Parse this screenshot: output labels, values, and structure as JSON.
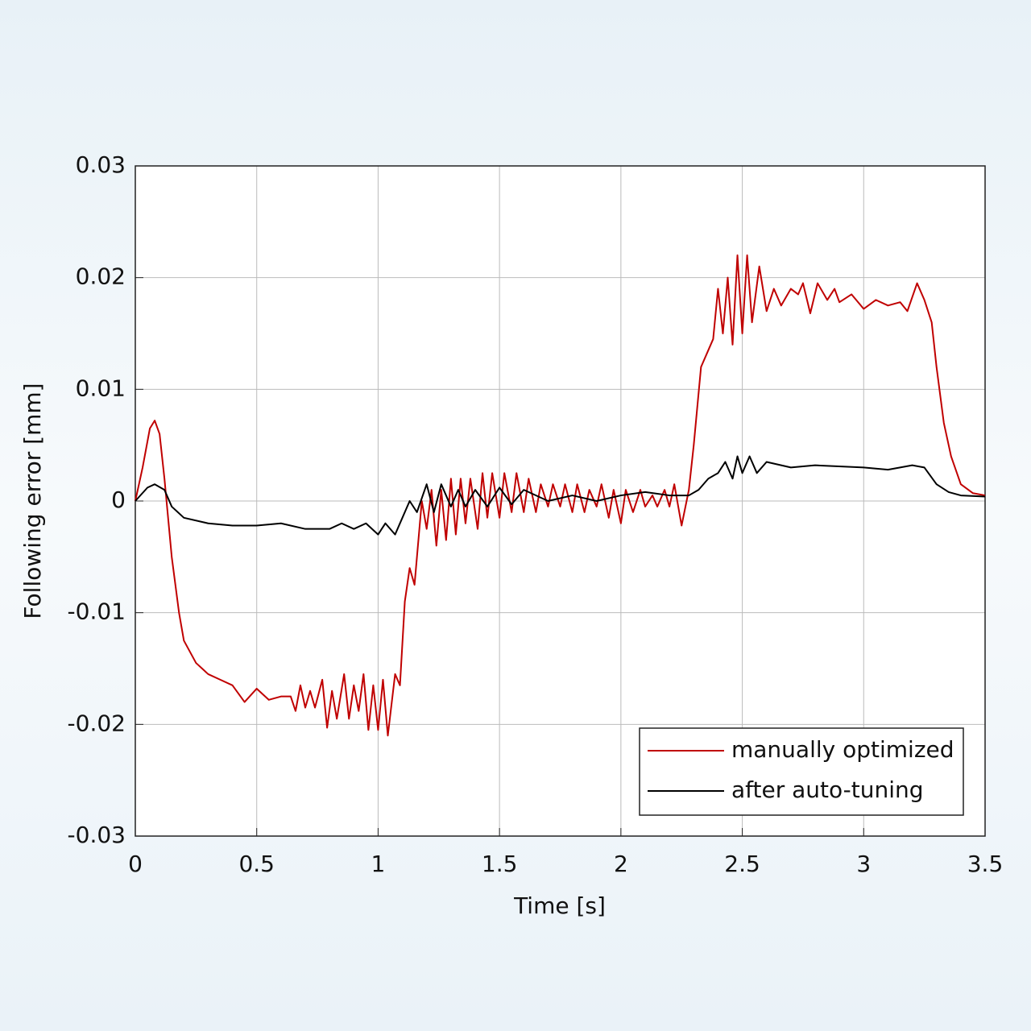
{
  "chart_data": {
    "type": "line",
    "xlabel": "Time [s]",
    "ylabel": "Following error [mm]",
    "xlim": [
      0,
      3.5
    ],
    "xticks": [
      0,
      0.5,
      1,
      1.5,
      2,
      2.5,
      3,
      3.5
    ],
    "ylim": [
      -0.03,
      0.03
    ],
    "yticks": [
      -0.03,
      -0.02,
      -0.01,
      0,
      0.01,
      0.02,
      0.03
    ],
    "grid": true,
    "legend": "lower right",
    "series": [
      {
        "name": "manually optimized",
        "color": "#c00000",
        "x": [
          0,
          0.03,
          0.06,
          0.08,
          0.1,
          0.12,
          0.15,
          0.18,
          0.2,
          0.25,
          0.3,
          0.35,
          0.4,
          0.45,
          0.5,
          0.55,
          0.6,
          0.64,
          0.66,
          0.68,
          0.7,
          0.72,
          0.74,
          0.77,
          0.79,
          0.81,
          0.83,
          0.86,
          0.88,
          0.9,
          0.92,
          0.94,
          0.96,
          0.98,
          1.0,
          1.02,
          1.04,
          1.07,
          1.09,
          1.11,
          1.13,
          1.15,
          1.18,
          1.2,
          1.22,
          1.24,
          1.26,
          1.28,
          1.3,
          1.32,
          1.34,
          1.36,
          1.38,
          1.41,
          1.43,
          1.45,
          1.47,
          1.5,
          1.52,
          1.55,
          1.57,
          1.6,
          1.62,
          1.65,
          1.67,
          1.7,
          1.72,
          1.75,
          1.77,
          1.8,
          1.82,
          1.85,
          1.87,
          1.9,
          1.92,
          1.95,
          1.97,
          2.0,
          2.02,
          2.05,
          2.08,
          2.1,
          2.13,
          2.15,
          2.18,
          2.2,
          2.22,
          2.25,
          2.28,
          2.3,
          2.33,
          2.36,
          2.38,
          2.4,
          2.42,
          2.44,
          2.46,
          2.48,
          2.5,
          2.52,
          2.54,
          2.57,
          2.6,
          2.63,
          2.66,
          2.7,
          2.73,
          2.75,
          2.78,
          2.81,
          2.85,
          2.88,
          2.9,
          2.95,
          3.0,
          3.05,
          3.1,
          3.15,
          3.18,
          3.22,
          3.25,
          3.28,
          3.3,
          3.33,
          3.36,
          3.4,
          3.45,
          3.5
        ],
        "values": [
          0,
          0.003,
          0.0065,
          0.0072,
          0.006,
          0.002,
          -0.005,
          -0.01,
          -0.0125,
          -0.0145,
          -0.0155,
          -0.016,
          -0.0165,
          -0.018,
          -0.0168,
          -0.0178,
          -0.0175,
          -0.0175,
          -0.0188,
          -0.0165,
          -0.0185,
          -0.017,
          -0.0185,
          -0.016,
          -0.0203,
          -0.017,
          -0.0195,
          -0.0155,
          -0.0195,
          -0.0165,
          -0.0188,
          -0.0155,
          -0.0205,
          -0.0165,
          -0.0205,
          -0.016,
          -0.021,
          -0.0155,
          -0.0165,
          -0.009,
          -0.006,
          -0.0075,
          0,
          -0.0025,
          0.001,
          -0.004,
          0.001,
          -0.0035,
          0.002,
          -0.003,
          0.002,
          -0.002,
          0.002,
          -0.0025,
          0.0025,
          -0.0015,
          0.0025,
          -0.0015,
          0.0025,
          -0.001,
          0.0025,
          -0.001,
          0.002,
          -0.001,
          0.0015,
          -0.0005,
          0.0015,
          -0.0005,
          0.0015,
          -0.001,
          0.0015,
          -0.001,
          0.001,
          -0.0005,
          0.0015,
          -0.0015,
          0.001,
          -0.002,
          0.001,
          -0.001,
          0.001,
          -0.0005,
          0.0005,
          -0.0005,
          0.001,
          -0.0005,
          0.0015,
          -0.0022,
          0.001,
          0.005,
          0.012,
          0.0135,
          0.0145,
          0.019,
          0.015,
          0.02,
          0.014,
          0.022,
          0.015,
          0.022,
          0.016,
          0.021,
          0.017,
          0.019,
          0.0175,
          0.019,
          0.0185,
          0.0195,
          0.0168,
          0.0195,
          0.018,
          0.019,
          0.0178,
          0.0185,
          0.0172,
          0.018,
          0.0175,
          0.0178,
          0.017,
          0.0195,
          0.018,
          0.016,
          0.012,
          0.007,
          0.004,
          0.0015,
          0.0007,
          0.0005
        ]
      },
      {
        "name": "after auto-tuning",
        "color": "#000000",
        "x": [
          0,
          0.05,
          0.08,
          0.12,
          0.15,
          0.2,
          0.3,
          0.4,
          0.5,
          0.6,
          0.7,
          0.8,
          0.85,
          0.9,
          0.95,
          1.0,
          1.03,
          1.07,
          1.1,
          1.13,
          1.16,
          1.2,
          1.23,
          1.26,
          1.3,
          1.33,
          1.36,
          1.4,
          1.45,
          1.5,
          1.55,
          1.6,
          1.7,
          1.8,
          1.9,
          2.0,
          2.1,
          2.2,
          2.28,
          2.32,
          2.36,
          2.4,
          2.43,
          2.46,
          2.48,
          2.5,
          2.53,
          2.56,
          2.6,
          2.7,
          2.8,
          3.0,
          3.1,
          3.2,
          3.25,
          3.3,
          3.35,
          3.4,
          3.5
        ],
        "values": [
          0,
          0.0012,
          0.0015,
          0.001,
          -0.0005,
          -0.0015,
          -0.002,
          -0.0022,
          -0.0022,
          -0.002,
          -0.0025,
          -0.0025,
          -0.002,
          -0.0025,
          -0.002,
          -0.003,
          -0.002,
          -0.003,
          -0.0015,
          0,
          -0.001,
          0.0015,
          -0.001,
          0.0015,
          -0.0005,
          0.001,
          -0.0005,
          0.001,
          -0.0005,
          0.0012,
          -0.0003,
          0.001,
          0,
          0.0005,
          0,
          0.0005,
          0.0008,
          0.0005,
          0.0005,
          0.001,
          0.002,
          0.0025,
          0.0035,
          0.002,
          0.004,
          0.0025,
          0.004,
          0.0025,
          0.0035,
          0.003,
          0.0032,
          0.003,
          0.0028,
          0.0032,
          0.003,
          0.0015,
          0.0008,
          0.0005,
          0.0004
        ]
      }
    ]
  }
}
